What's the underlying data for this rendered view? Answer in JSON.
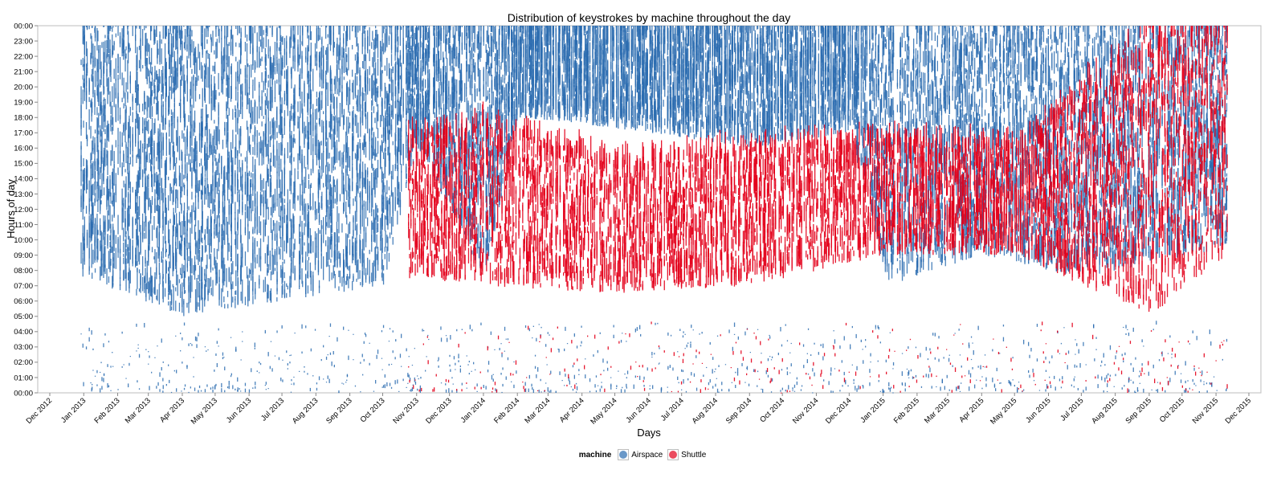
{
  "chart_data": {
    "type": "scatter",
    "title": "Distribution of keystrokes by machine throughout the day",
    "xlabel": "Days",
    "ylabel": "Hours of day",
    "x_ticks": [
      "Dec 2012",
      "Jan 2013",
      "Feb 2013",
      "Mar 2013",
      "Apr 2013",
      "May 2013",
      "Jun 2013",
      "Jul 2013",
      "Aug 2013",
      "Sep 2013",
      "Oct 2013",
      "Nov 2013",
      "Dec 2013",
      "Jan 2014",
      "Feb 2014",
      "Mar 2014",
      "Apr 2014",
      "May 2014",
      "Jun 2014",
      "Jul 2014",
      "Aug 2014",
      "Sep 2014",
      "Oct 2014",
      "Nov 2014",
      "Dec 2014",
      "Jan 2015",
      "Feb 2015",
      "Mar 2015",
      "Apr 2015",
      "May 2015",
      "Jun 2015",
      "Jul 2015",
      "Aug 2015",
      "Sep 2015",
      "Oct 2015",
      "Nov 2015",
      "Dec 2015"
    ],
    "y_ticks": [
      "00:00",
      "01:00",
      "02:00",
      "03:00",
      "04:00",
      "05:00",
      "06:00",
      "07:00",
      "08:00",
      "09:00",
      "10:00",
      "11:00",
      "12:00",
      "13:00",
      "14:00",
      "15:00",
      "16:00",
      "17:00",
      "18:00",
      "19:00",
      "20:00",
      "21:00",
      "22:00",
      "23:00",
      "00:00"
    ],
    "xlim": [
      "2012-11-20",
      "2015-12-12"
    ],
    "ylim": [
      0,
      24
    ],
    "legend": {
      "title": "machine",
      "position": "bottom"
    },
    "series": [
      {
        "name": "Airspace",
        "color": "#2b6cb0",
        "active_periods": [
          [
            "2012-12-29",
            "2015-11-10"
          ]
        ],
        "main_hours_by_date": [
          [
            "2013-01-01",
            7.5,
            24
          ],
          [
            "2013-04-01",
            5.0,
            24
          ],
          [
            "2013-07-01",
            6.0,
            24
          ],
          [
            "2013-10-01",
            7.0,
            24
          ],
          [
            "2013-11-01",
            16.0,
            24
          ],
          [
            "2014-01-01",
            7.5,
            24
          ],
          [
            "2014-02-01",
            18.0,
            24
          ],
          [
            "2014-06-01",
            17.0,
            24
          ],
          [
            "2014-09-01",
            16.0,
            24
          ],
          [
            "2014-12-01",
            17.0,
            24
          ],
          [
            "2015-01-05",
            7.0,
            24
          ],
          [
            "2015-04-01",
            9.0,
            24
          ],
          [
            "2015-07-01",
            7.5,
            24
          ],
          [
            "2015-11-10",
            9.5,
            24
          ]
        ],
        "late_night_hours": [
          0,
          4.5
        ]
      },
      {
        "name": "Shuttle",
        "color": "#e3001b",
        "active_periods": [
          [
            "2013-10-24",
            "2015-11-10"
          ]
        ],
        "main_hours_by_date": [
          [
            "2013-10-24",
            7.5,
            16.5
          ],
          [
            "2014-01-01",
            7.0,
            17.5
          ],
          [
            "2014-05-01",
            6.5,
            15.0
          ],
          [
            "2014-09-01",
            7.0,
            16.0
          ],
          [
            "2015-01-01",
            9.0,
            16.5
          ],
          [
            "2015-05-01",
            9.0,
            16.0
          ],
          [
            "2015-09-01",
            5.0,
            24
          ],
          [
            "2015-11-10",
            9.0,
            24
          ]
        ],
        "late_night_hours": [
          0,
          4.5
        ]
      }
    ]
  }
}
